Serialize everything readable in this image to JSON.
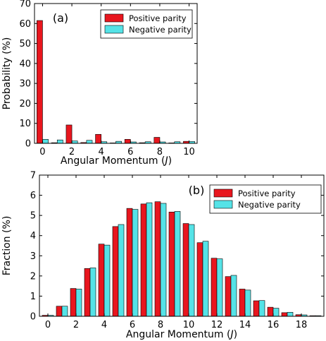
{
  "chart_data": [
    {
      "type": "bar",
      "panel_label": "(a)",
      "xlabel": "Angular Momentum",
      "xlabel_symbol": "J",
      "ylabel": "Probability (%)",
      "categories": [
        0,
        1,
        2,
        3,
        4,
        5,
        6,
        7,
        8,
        9,
        10
      ],
      "xticks": [
        "0",
        "2",
        "4",
        "6",
        "8",
        "10"
      ],
      "yticks": [
        "0",
        "10",
        "20",
        "30",
        "40",
        "50",
        "60",
        "70"
      ],
      "ylim": [
        0,
        70
      ],
      "xlim": [
        -0.55,
        10.55
      ],
      "legend_position": "top-right",
      "grid": false,
      "series": [
        {
          "name": "Positive parity",
          "color": "#e8161e",
          "values": [
            61.5,
            0.3,
            9.2,
            0.4,
            4.5,
            0.2,
            2.0,
            0.3,
            3.0,
            0.2,
            1.0
          ]
        },
        {
          "name": "Negative parity",
          "color": "#55e3e7",
          "values": [
            2.0,
            1.7,
            1.2,
            1.5,
            0.8,
            1.0,
            0.7,
            0.8,
            0.7,
            0.8,
            0.9
          ]
        }
      ]
    },
    {
      "type": "bar",
      "panel_label": "(b)",
      "xlabel": "Angular Momentum",
      "xlabel_symbol": "J",
      "ylabel": "Fraction (%)",
      "categories": [
        0,
        1,
        2,
        3,
        4,
        5,
        6,
        7,
        8,
        9,
        10,
        11,
        12,
        13,
        14,
        15,
        16,
        17,
        18,
        19
      ],
      "xticks": [
        "0",
        "2",
        "4",
        "6",
        "8",
        "10",
        "12",
        "14",
        "16",
        "18"
      ],
      "yticks": [
        "0",
        "1",
        "2",
        "3",
        "4",
        "5",
        "6",
        "7"
      ],
      "ylim": [
        0,
        7
      ],
      "xlim": [
        -0.6,
        19.6
      ],
      "legend_position": "top-right",
      "grid": false,
      "series": [
        {
          "name": "Positive parity",
          "color": "#e8161e",
          "values": [
            0.05,
            0.5,
            1.38,
            2.37,
            3.58,
            4.45,
            5.35,
            5.57,
            5.68,
            5.17,
            4.6,
            3.65,
            2.88,
            1.97,
            1.35,
            0.77,
            0.45,
            0.18,
            0.08,
            0.03
          ]
        },
        {
          "name": "Negative parity",
          "color": "#55e3e7",
          "values": [
            0.05,
            0.5,
            1.35,
            2.4,
            3.53,
            4.55,
            5.3,
            5.63,
            5.6,
            5.2,
            4.55,
            3.72,
            2.85,
            2.03,
            1.3,
            0.78,
            0.4,
            0.2,
            0.07,
            0.03
          ]
        }
      ]
    }
  ]
}
